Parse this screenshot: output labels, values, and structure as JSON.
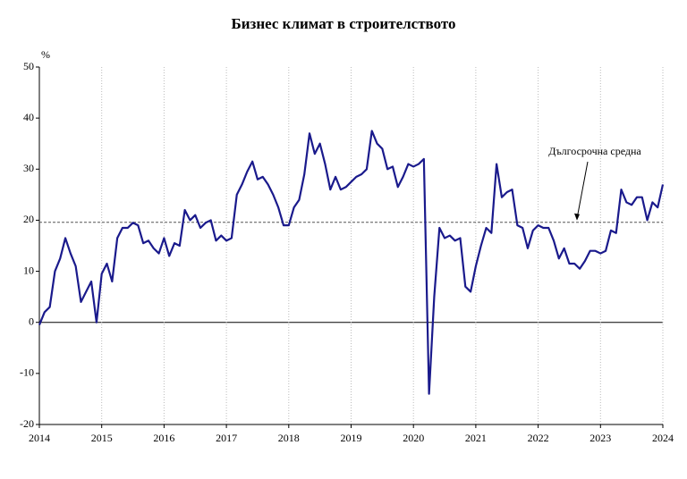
{
  "chart_data": {
    "type": "line",
    "title": "Бизнес климат в строителството",
    "y_label": "%",
    "x": [
      2014,
      2014.083,
      2014.167,
      2014.25,
      2014.333,
      2014.417,
      2014.5,
      2014.583,
      2014.667,
      2014.75,
      2014.833,
      2014.917,
      2015,
      2015.083,
      2015.167,
      2015.25,
      2015.333,
      2015.417,
      2015.5,
      2015.583,
      2015.667,
      2015.75,
      2015.833,
      2015.917,
      2016,
      2016.083,
      2016.167,
      2016.25,
      2016.333,
      2016.417,
      2016.5,
      2016.583,
      2016.667,
      2016.75,
      2016.833,
      2016.917,
      2017,
      2017.083,
      2017.167,
      2017.25,
      2017.333,
      2017.417,
      2017.5,
      2017.583,
      2017.667,
      2017.75,
      2017.833,
      2017.917,
      2018,
      2018.083,
      2018.167,
      2018.25,
      2018.333,
      2018.417,
      2018.5,
      2018.583,
      2018.667,
      2018.75,
      2018.833,
      2018.917,
      2019,
      2019.083,
      2019.167,
      2019.25,
      2019.333,
      2019.417,
      2019.5,
      2019.583,
      2019.667,
      2019.75,
      2019.833,
      2019.917,
      2020,
      2020.083,
      2020.167,
      2020.25,
      2020.333,
      2020.417,
      2020.5,
      2020.583,
      2020.667,
      2020.75,
      2020.833,
      2020.917,
      2021,
      2021.083,
      2021.167,
      2021.25,
      2021.333,
      2021.417,
      2021.5,
      2021.583,
      2021.667,
      2021.75,
      2021.833,
      2021.917,
      2022,
      2022.083,
      2022.167,
      2022.25,
      2022.333,
      2022.417,
      2022.5,
      2022.583,
      2022.667,
      2022.75,
      2022.833,
      2022.917,
      2023,
      2023.083,
      2023.167,
      2023.25,
      2023.333,
      2023.417,
      2023.5,
      2023.583,
      2023.667,
      2023.75,
      2023.833,
      2023.917,
      2024
    ],
    "series": [
      {
        "color": "#1a1a8c",
        "values": [
          -0.5,
          2,
          3,
          10,
          12.5,
          16.5,
          13.5,
          11,
          4,
          6,
          8,
          0,
          9.5,
          11.5,
          8,
          16.5,
          18.5,
          18.5,
          19.5,
          19,
          15.5,
          16,
          14.5,
          13.5,
          16.5,
          13,
          15.5,
          15,
          22,
          20,
          21,
          18.5,
          19.5,
          20,
          16,
          17,
          16,
          16.5,
          25,
          27,
          29.5,
          31.5,
          28,
          28.5,
          27,
          25,
          22.5,
          19,
          19,
          22.5,
          24,
          29,
          37,
          33,
          35,
          31,
          26,
          28.5,
          26,
          26.5,
          27.5,
          28.5,
          29,
          30,
          37.5,
          35,
          34,
          30,
          30.5,
          26.5,
          28.5,
          31,
          30.5,
          31,
          32,
          -14,
          5,
          18.5,
          16.5,
          17,
          16,
          16.5,
          7,
          6,
          11,
          15,
          18.5,
          17.5,
          31,
          24.5,
          25.5,
          26,
          19,
          18.5,
          14.5,
          18,
          19,
          18.5,
          18.5,
          16,
          12.5,
          14.5,
          11.5,
          11.5,
          10.5,
          12,
          14,
          14,
          13.5,
          14,
          18,
          17.5,
          26,
          23.5,
          23,
          24.5,
          24.5,
          20,
          23.5,
          22.5,
          27
        ]
      }
    ],
    "reference_line": {
      "value": 19.6,
      "label": "Дългосрочна средна",
      "color": "#555555"
    },
    "xlim": [
      2014,
      2024
    ],
    "xticks": [
      2014,
      2015,
      2016,
      2017,
      2018,
      2019,
      2020,
      2021,
      2022,
      2023,
      2024
    ],
    "ylim": [
      -20,
      50
    ],
    "yticks": [
      -20,
      -10,
      0,
      10,
      20,
      30,
      40,
      50
    ],
    "grid": true
  }
}
